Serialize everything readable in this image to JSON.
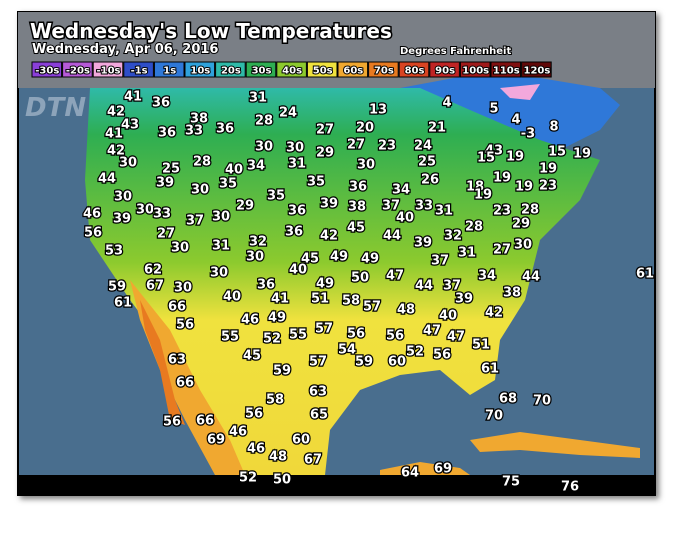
{
  "header": {
    "title": "Wednesday's Low Temperatures",
    "subtitle": "Wednesday, Apr 06, 2016",
    "units": "Degrees Fahrenheit",
    "logo": "DTN"
  },
  "legend": [
    {
      "label": "-30s",
      "color": "#8a3fd8"
    },
    {
      "label": "-20s",
      "color": "#b65ad8"
    },
    {
      "label": "-10s",
      "color": "#f2a8dc"
    },
    {
      "label": "-1s",
      "color": "#2e4ec8"
    },
    {
      "label": "1s",
      "color": "#2f78d8"
    },
    {
      "label": "10s",
      "color": "#2fa2dc"
    },
    {
      "label": "20s",
      "color": "#2fbaa8"
    },
    {
      "label": "30s",
      "color": "#2eae52"
    },
    {
      "label": "40s",
      "color": "#8cca2e"
    },
    {
      "label": "50s",
      "color": "#f0e23e"
    },
    {
      "label": "60s",
      "color": "#f0a830"
    },
    {
      "label": "70s",
      "color": "#e87a20"
    },
    {
      "label": "80s",
      "color": "#d84422"
    },
    {
      "label": "90s",
      "color": "#c02424"
    },
    {
      "label": "100s",
      "color": "#a01a1a"
    },
    {
      "label": "110s",
      "color": "#801010"
    },
    {
      "label": "120s",
      "color": "#600808"
    }
  ],
  "temperatures": [
    41,
    36,
    31,
    24,
    13,
    4,
    5,
    4,
    38,
    42,
    43,
    41,
    36,
    33,
    36,
    28,
    27,
    20,
    21,
    -3,
    8,
    42,
    30,
    30,
    29,
    27,
    23,
    24,
    43,
    15,
    19,
    15,
    19,
    30,
    25,
    28,
    40,
    34,
    31,
    30,
    25,
    19,
    44,
    39,
    35,
    35,
    36,
    34,
    26,
    18,
    19,
    19,
    19,
    23,
    30,
    30,
    35,
    39,
    38,
    37,
    33,
    31,
    23,
    28,
    46,
    30,
    33,
    39,
    37,
    30,
    29,
    36,
    40,
    29,
    56,
    27,
    36,
    42,
    45,
    44,
    32,
    28,
    53,
    30,
    31,
    32,
    30,
    39,
    31,
    27,
    30,
    62,
    45,
    49,
    49,
    37,
    40,
    34,
    44,
    61,
    59,
    67,
    30,
    30,
    36,
    49,
    50,
    47,
    44,
    37,
    61,
    40,
    41,
    51,
    58,
    57,
    48,
    39,
    38,
    66,
    46,
    49,
    40,
    42,
    56,
    55,
    52,
    55,
    57,
    56,
    56,
    47,
    47,
    54,
    59,
    60,
    52,
    56,
    51,
    45,
    63,
    57,
    61,
    59,
    66,
    63,
    68,
    70,
    58,
    65,
    70,
    56,
    56,
    66,
    46,
    69,
    60,
    46,
    48,
    67,
    64,
    69,
    52,
    50,
    75,
    76
  ]
}
